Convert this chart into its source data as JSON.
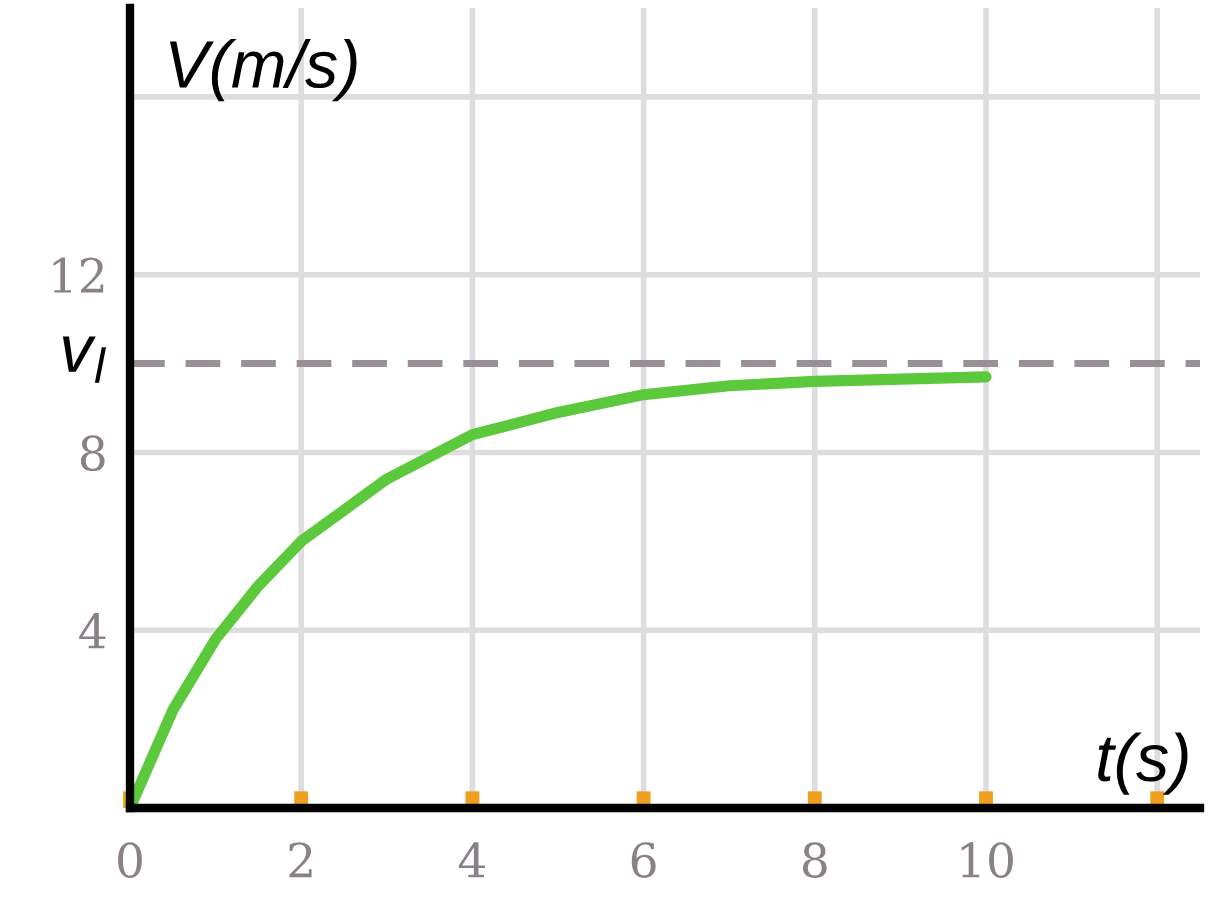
{
  "chart_data": {
    "type": "line",
    "xlabel": "t(s)",
    "ylabel": "V(m/s)",
    "x": [
      0,
      0.5,
      1,
      1.5,
      2,
      3,
      4,
      5,
      6,
      7,
      8,
      9,
      10
    ],
    "series": [
      {
        "color": "#5cc83c",
        "values": [
          0,
          2.2,
          3.8,
          5.0,
          6.0,
          7.4,
          8.4,
          8.9,
          9.3,
          9.5,
          9.6,
          9.65,
          9.7
        ]
      }
    ],
    "xlim": [
      0,
      12.5
    ],
    "ylim": [
      0,
      18
    ],
    "xticks": [
      0,
      2,
      4,
      6,
      8,
      10,
      {
        "value": 12,
        "label": null
      }
    ],
    "yticks": [
      4,
      8,
      12,
      {
        "value": 16,
        "label": null
      }
    ],
    "ref_lines": [
      {
        "axis": "y",
        "value": 10,
        "label": "v$_{l}$",
        "color": "#9a8f96",
        "line_style": "dashed"
      }
    ],
    "grid": true,
    "marker": "none",
    "line_style": "solid"
  }
}
